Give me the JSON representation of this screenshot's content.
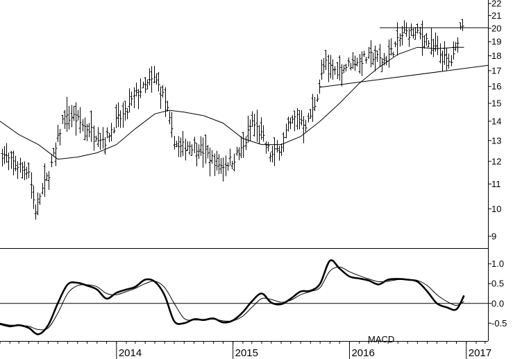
{
  "chart_data": [
    {
      "type": "bar",
      "subtype": "ohlc",
      "y_scale": "log",
      "ylim": [
        8.6,
        22.3
      ],
      "y_ticks": [
        22,
        21,
        20,
        19,
        18,
        17,
        16,
        15,
        14,
        13,
        12,
        11,
        10,
        9
      ],
      "x_axis_dates": true,
      "xlim": [
        "2013-01-01",
        "2017-03-10"
      ],
      "x_ticks": [
        {
          "date": "2014-01-01",
          "label": "2014"
        },
        {
          "date": "2015-01-01",
          "label": "2015"
        },
        {
          "date": "2016-01-01",
          "label": "2016"
        },
        {
          "date": "2017-01-01",
          "label": "2017"
        }
      ],
      "price_anchors": [
        [
          "2013-01-07",
          12.4
        ],
        [
          "2013-02-01",
          12.0
        ],
        [
          "2013-03-01",
          11.8
        ],
        [
          "2013-04-01",
          11.6
        ],
        [
          "2013-04-20",
          9.9
        ],
        [
          "2013-05-05",
          10.5
        ],
        [
          "2013-06-01",
          11.4
        ],
        [
          "2013-06-25",
          12.6
        ],
        [
          "2013-07-15",
          14.0
        ],
        [
          "2013-08-15",
          14.3
        ],
        [
          "2013-09-15",
          13.8
        ],
        [
          "2013-10-15",
          13.5
        ],
        [
          "2013-11-25",
          13.0
        ],
        [
          "2014-01-01",
          14.0
        ],
        [
          "2014-02-01",
          14.5
        ],
        [
          "2014-03-01",
          15.5
        ],
        [
          "2014-04-01",
          16.0
        ],
        [
          "2014-05-01",
          16.5
        ],
        [
          "2014-06-01",
          15.2
        ],
        [
          "2014-06-25",
          13.2
        ],
        [
          "2014-07-15",
          12.6
        ],
        [
          "2014-08-15",
          12.8
        ],
        [
          "2014-09-15",
          12.7
        ],
        [
          "2014-10-20",
          12.2
        ],
        [
          "2014-11-25",
          11.8
        ],
        [
          "2015-01-01",
          12.1
        ],
        [
          "2015-02-01",
          12.6
        ],
        [
          "2015-03-01",
          14.0
        ],
        [
          "2015-04-01",
          13.2
        ],
        [
          "2015-05-01",
          12.2
        ],
        [
          "2015-06-01",
          12.8
        ],
        [
          "2015-06-20",
          13.6
        ],
        [
          "2015-07-20",
          14.3
        ],
        [
          "2015-08-20",
          13.8
        ],
        [
          "2015-09-15",
          15.0
        ],
        [
          "2015-10-15",
          17.5
        ],
        [
          "2015-11-15",
          17.0
        ],
        [
          "2015-12-15",
          17.2
        ],
        [
          "2016-01-15",
          17.6
        ],
        [
          "2016-02-15",
          17.8
        ],
        [
          "2016-03-15",
          18.0
        ],
        [
          "2016-04-15",
          17.6
        ],
        [
          "2016-05-15",
          18.4
        ],
        [
          "2016-06-20",
          19.7
        ],
        [
          "2016-07-20",
          19.6
        ],
        [
          "2016-08-20",
          19.4
        ],
        [
          "2016-09-20",
          18.6
        ],
        [
          "2016-10-20",
          17.8
        ],
        [
          "2016-11-10",
          17.5
        ],
        [
          "2016-11-25",
          18.0
        ],
        [
          "2016-12-10",
          19.9
        ],
        [
          "2016-12-22",
          20.7
        ]
      ],
      "moving_average": [
        [
          "2013-01-01",
          14.0
        ],
        [
          "2013-03-01",
          13.3
        ],
        [
          "2013-05-01",
          12.8
        ],
        [
          "2013-07-01",
          12.1
        ],
        [
          "2013-09-01",
          12.2
        ],
        [
          "2013-11-01",
          12.4
        ],
        [
          "2014-01-01",
          12.8
        ],
        [
          "2014-03-01",
          13.6
        ],
        [
          "2014-05-01",
          14.4
        ],
        [
          "2014-06-15",
          14.6
        ],
        [
          "2014-08-01",
          14.5
        ],
        [
          "2014-10-01",
          14.3
        ],
        [
          "2014-12-01",
          13.9
        ],
        [
          "2015-02-01",
          13.1
        ],
        [
          "2015-04-01",
          12.8
        ],
        [
          "2015-06-01",
          12.8
        ],
        [
          "2015-08-01",
          13.2
        ],
        [
          "2015-10-01",
          14.0
        ],
        [
          "2015-12-01",
          15.0
        ],
        [
          "2016-02-01",
          16.2
        ],
        [
          "2016-04-01",
          17.2
        ],
        [
          "2016-06-01",
          18.1
        ],
        [
          "2016-08-01",
          18.6
        ],
        [
          "2016-10-01",
          18.5
        ],
        [
          "2016-12-01",
          18.6
        ],
        [
          "2016-12-25",
          18.6
        ]
      ],
      "trendlines": [
        {
          "from": [
            "2015-10-01",
            15.95
          ],
          "to": [
            "2017-03-10",
            17.35
          ]
        },
        {
          "from": [
            "2016-04-05",
            20.05
          ],
          "to": [
            "2017-03-10",
            20.05
          ]
        }
      ]
    },
    {
      "type": "line",
      "series": [
        {
          "role": "macd",
          "x": [
            "2013-01-01",
            "2013-02-01",
            "2013-03-01",
            "2013-04-01",
            "2013-05-01",
            "2013-06-01",
            "2013-07-01",
            "2013-08-01",
            "2013-09-01",
            "2013-10-01",
            "2013-11-01",
            "2013-12-01",
            "2014-01-01",
            "2014-02-01",
            "2014-03-01",
            "2014-04-01",
            "2014-05-01",
            "2014-06-01",
            "2014-07-01",
            "2014-08-01",
            "2014-09-01",
            "2014-10-01",
            "2014-11-01",
            "2014-12-01",
            "2015-01-01",
            "2015-02-01",
            "2015-03-01",
            "2015-04-01",
            "2015-05-01",
            "2015-06-01",
            "2015-07-01",
            "2015-08-01",
            "2015-09-01",
            "2015-10-01",
            "2015-11-01",
            "2015-12-01",
            "2016-01-01",
            "2016-02-01",
            "2016-03-01",
            "2016-04-01",
            "2016-05-01",
            "2016-06-01",
            "2016-07-01",
            "2016-08-01",
            "2016-09-01",
            "2016-10-01",
            "2016-11-01",
            "2016-12-01",
            "2016-12-25"
          ],
          "y": [
            -0.52,
            -0.58,
            -0.55,
            -0.62,
            -0.78,
            -0.55,
            0.0,
            0.48,
            0.52,
            0.45,
            0.35,
            0.12,
            0.27,
            0.35,
            0.42,
            0.6,
            0.55,
            0.2,
            -0.45,
            -0.5,
            -0.4,
            -0.42,
            -0.38,
            -0.48,
            -0.43,
            -0.22,
            0.05,
            0.25,
            0.02,
            -0.02,
            0.12,
            0.3,
            0.32,
            0.5,
            1.08,
            0.88,
            0.68,
            0.63,
            0.58,
            0.48,
            0.6,
            0.62,
            0.6,
            0.55,
            0.3,
            0.0,
            -0.1,
            -0.15,
            0.2
          ]
        },
        {
          "role": "signal",
          "x": [
            "2013-01-01",
            "2013-02-01",
            "2013-03-01",
            "2013-04-01",
            "2013-05-01",
            "2013-06-01",
            "2013-07-01",
            "2013-08-01",
            "2013-09-01",
            "2013-10-01",
            "2013-11-01",
            "2013-12-01",
            "2014-01-01",
            "2014-02-01",
            "2014-03-01",
            "2014-04-01",
            "2014-05-01",
            "2014-06-01",
            "2014-07-01",
            "2014-08-01",
            "2014-09-01",
            "2014-10-01",
            "2014-11-01",
            "2014-12-01",
            "2015-01-01",
            "2015-02-01",
            "2015-03-01",
            "2015-04-01",
            "2015-05-01",
            "2015-06-01",
            "2015-07-01",
            "2015-08-01",
            "2015-09-01",
            "2015-10-01",
            "2015-11-01",
            "2015-12-01",
            "2016-01-01",
            "2016-02-01",
            "2016-03-01",
            "2016-04-01",
            "2016-05-01",
            "2016-06-01",
            "2016-07-01",
            "2016-08-01",
            "2016-09-01",
            "2016-10-01",
            "2016-11-01",
            "2016-12-01",
            "2016-12-25"
          ],
          "y": [
            -0.5,
            -0.55,
            -0.55,
            -0.58,
            -0.66,
            -0.62,
            -0.25,
            0.25,
            0.45,
            0.47,
            0.42,
            0.25,
            0.22,
            0.3,
            0.38,
            0.5,
            0.56,
            0.4,
            0.0,
            -0.38,
            -0.42,
            -0.41,
            -0.4,
            -0.44,
            -0.44,
            -0.32,
            -0.1,
            0.12,
            0.1,
            0.03,
            0.08,
            0.22,
            0.3,
            0.4,
            0.82,
            0.92,
            0.8,
            0.7,
            0.62,
            0.55,
            0.56,
            0.6,
            0.6,
            0.58,
            0.45,
            0.22,
            0.05,
            -0.05,
            0.05
          ]
        }
      ],
      "ylim": [
        -0.95,
        1.38
      ],
      "y_ticks": [
        1.0,
        0.5,
        0.0,
        -0.5
      ],
      "y_tick_labels": [
        "1.0",
        "0.5",
        "0.0",
        "-0.5"
      ],
      "zero_line": true,
      "annotation": "MACD"
    }
  ]
}
